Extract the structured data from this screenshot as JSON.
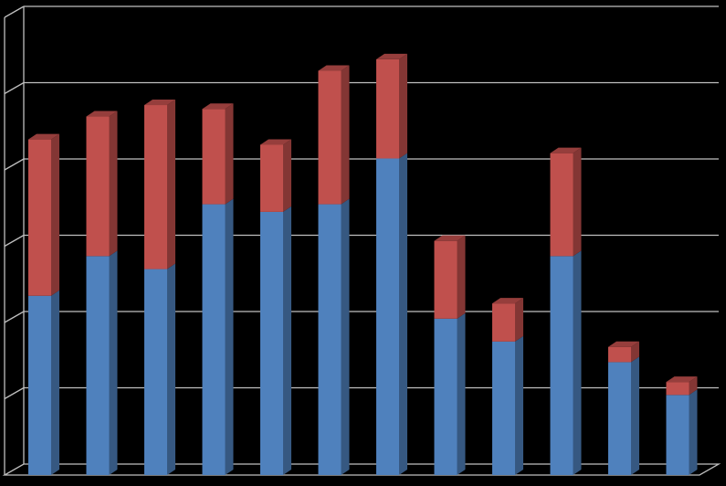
{
  "chart_data": {
    "type": "bar",
    "stacked": true,
    "three_d": true,
    "categories": [
      "",
      "",
      "",
      "",
      "",
      "",
      "",
      "",
      "",
      "",
      "",
      ""
    ],
    "series": [
      {
        "values": [
          2.35,
          2.87,
          2.7,
          3.55,
          3.45,
          3.55,
          4.15,
          2.05,
          1.75,
          2.87,
          1.48,
          1.05
        ]
      },
      {
        "values": [
          2.05,
          1.83,
          2.15,
          1.25,
          0.88,
          1.75,
          1.3,
          1.02,
          0.5,
          1.35,
          0.2,
          0.17
        ]
      }
    ],
    "ylim": [
      0,
      6
    ],
    "grid": true,
    "legend": "none",
    "colors": {
      "background": "#000000",
      "gridline": "#bfbfbf",
      "series": [
        "#4f81bd",
        "#c0504d"
      ]
    }
  }
}
